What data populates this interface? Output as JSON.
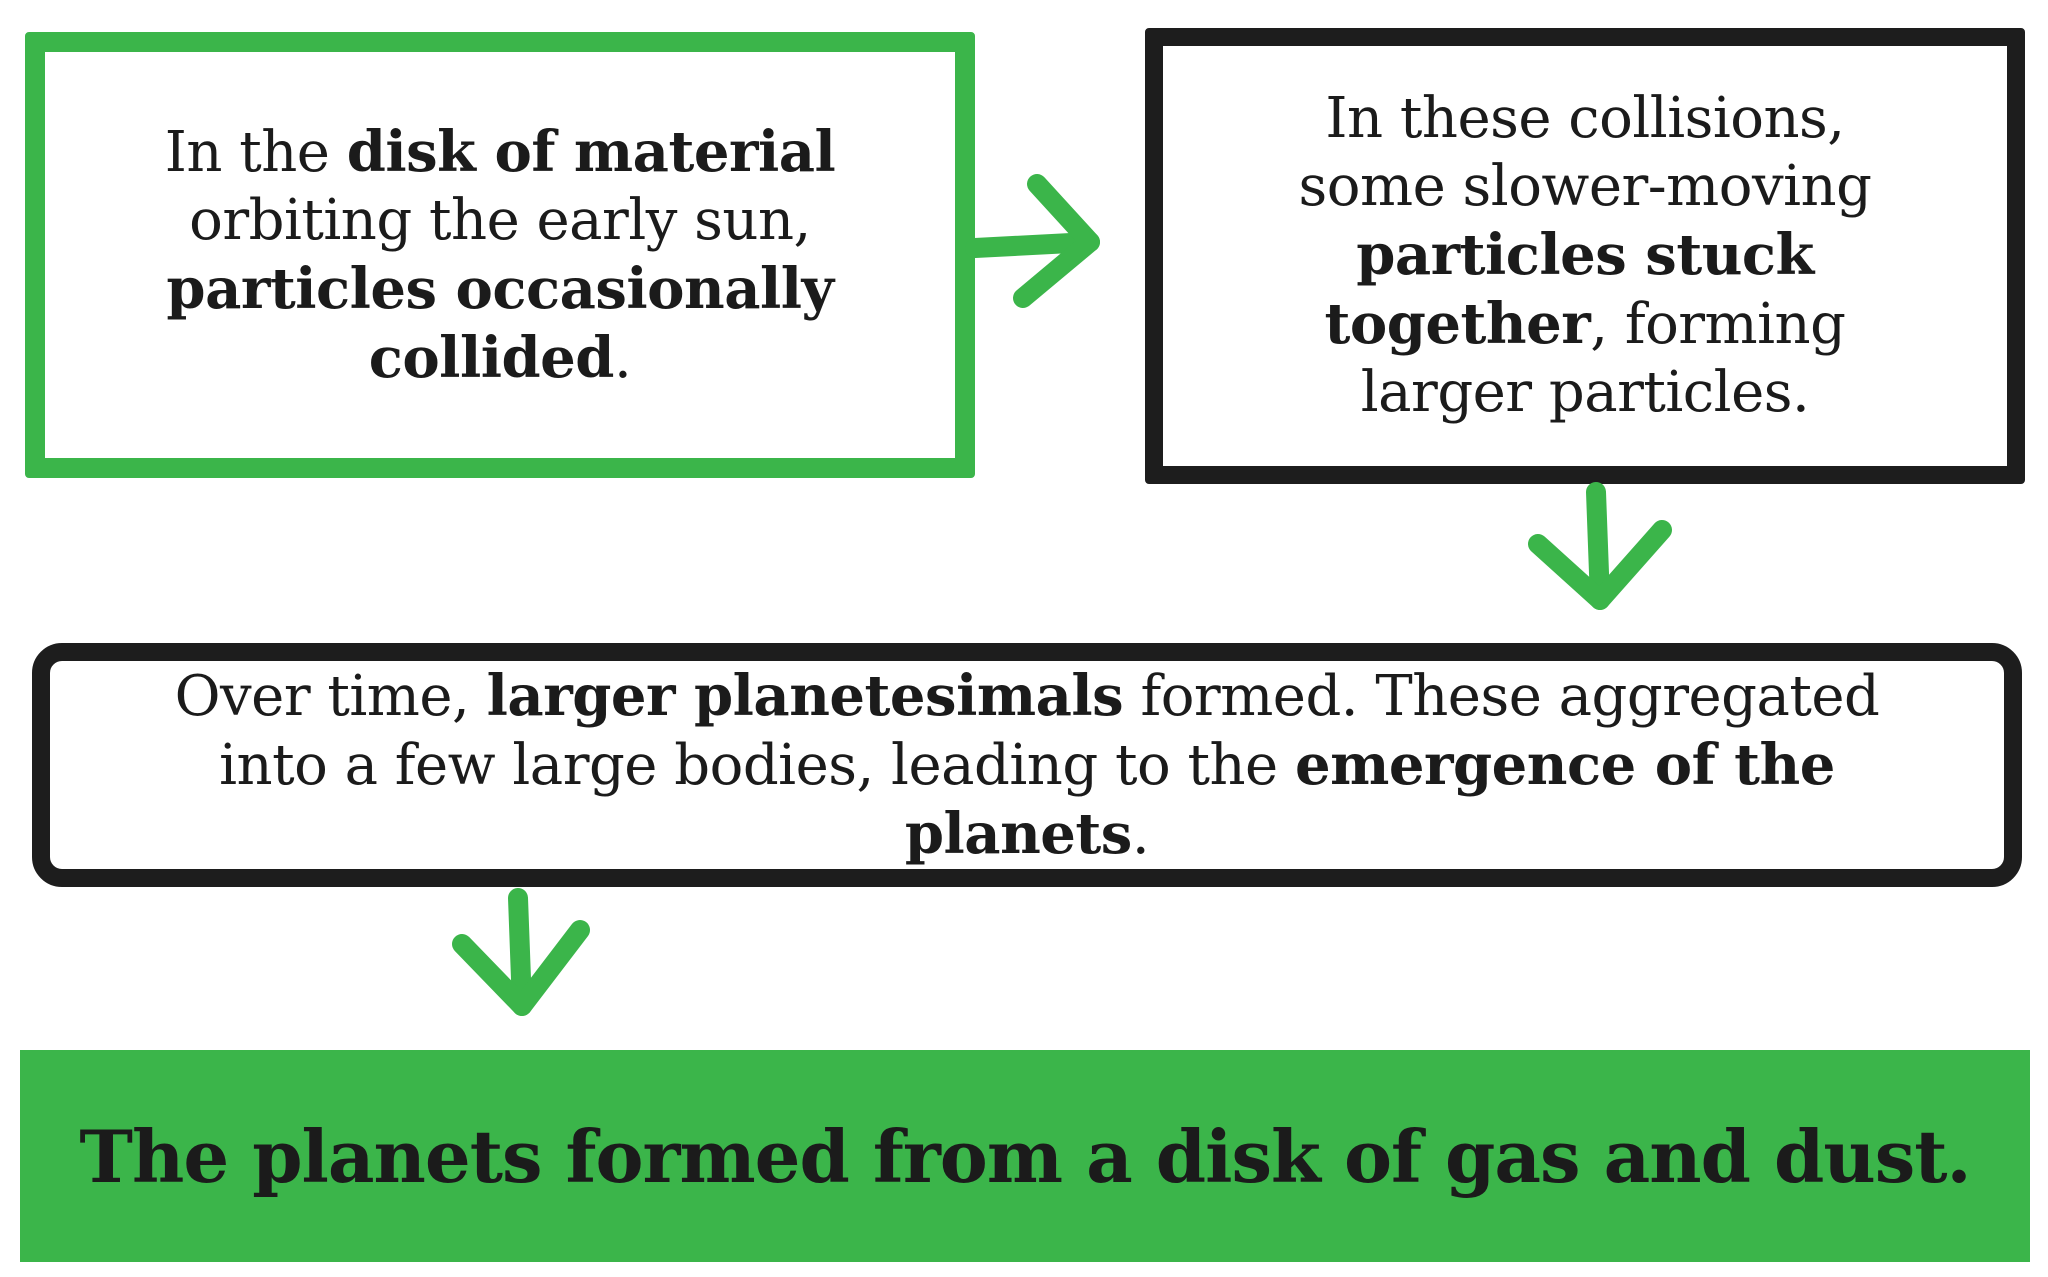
{
  "colors": {
    "accent": "#3bb54a",
    "ink": "#1d1d1d"
  },
  "step1": {
    "p1": "In the ",
    "b1": "disk of material",
    "p2": " orbiting the early sun, ",
    "b2": "particles occasionally collided",
    "p3": "."
  },
  "step2": {
    "p1": "In these collisions, some slower-moving ",
    "b1": "particles stuck together",
    "p2": ", forming larger particles."
  },
  "step3": {
    "p1": "Over time, ",
    "b1": "larger planetesimals",
    "p2": " formed. These aggregated into a few large bodies, leading to the ",
    "b2": "emergence of the planets",
    "p3": "."
  },
  "conclusion": {
    "text": "The planets formed from a disk of gas and dust."
  }
}
